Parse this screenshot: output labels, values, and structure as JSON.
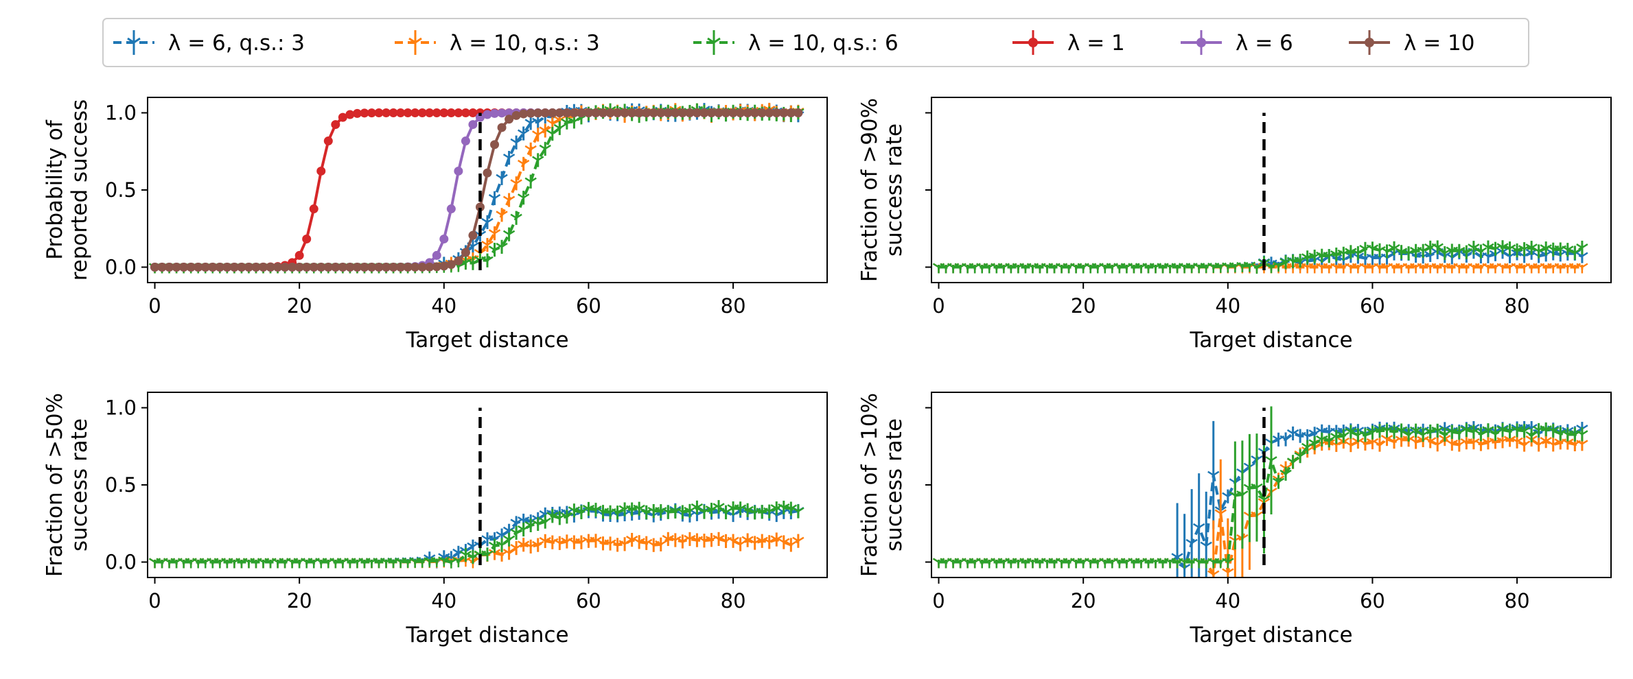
{
  "legend": {
    "entries": [
      {
        "label": "λ = 6, q.s.: 3",
        "color": "#1f77b4",
        "style": "dashed-tri"
      },
      {
        "label": "λ = 10, q.s.: 3",
        "color": "#ff7f0e",
        "style": "dashed-tri"
      },
      {
        "label": "λ = 10, q.s.: 6",
        "color": "#2ca02c",
        "style": "dashed-tri"
      },
      {
        "label": "λ = 1",
        "color": "#d62728",
        "style": "solid-dot"
      },
      {
        "label": "λ = 6",
        "color": "#9467bd",
        "style": "solid-dot"
      },
      {
        "label": "λ = 10",
        "color": "#8c564b",
        "style": "solid-dot"
      }
    ]
  },
  "chart_data": [
    {
      "type": "line",
      "id": "reported-success",
      "xlabel": "Target distance",
      "ylabel": [
        "Probability of",
        "reported success"
      ],
      "xlim": [
        -1,
        93
      ],
      "ylim": [
        -0.1,
        1.1
      ],
      "xticks": [
        0,
        20,
        40,
        60,
        80
      ],
      "yticks": [
        0.0,
        0.5,
        1.0
      ],
      "ytick_labels": [
        "0.0",
        "0.5",
        "1.0"
      ],
      "threshold_x": 45,
      "series": [
        {
          "name": "λ = 6, q.s.: 3",
          "color": "#1f77b4",
          "style": "dashed-tri",
          "logistic": {
            "mid": 47.5,
            "k": 0.55
          }
        },
        {
          "name": "λ = 10, q.s.: 3",
          "color": "#ff7f0e",
          "style": "dashed-tri",
          "logistic": {
            "mid": 49.5,
            "k": 0.5
          }
        },
        {
          "name": "λ = 10, q.s.: 6",
          "color": "#2ca02c",
          "style": "dashed-tri",
          "logistic": {
            "mid": 51.5,
            "k": 0.5
          }
        },
        {
          "name": "λ = 1",
          "color": "#d62728",
          "style": "solid-dot",
          "logistic": {
            "mid": 22.5,
            "k": 1.0
          }
        },
        {
          "name": "λ = 6",
          "color": "#9467bd",
          "style": "solid-dot",
          "logistic": {
            "mid": 41.5,
            "k": 1.0
          }
        },
        {
          "name": "λ = 10",
          "color": "#8c564b",
          "style": "solid-dot",
          "logistic": {
            "mid": 45.5,
            "k": 0.9
          }
        }
      ]
    },
    {
      "type": "line",
      "id": "fraction-90",
      "xlabel": "Target distance",
      "ylabel": [
        "Fraction of >90%",
        "success rate"
      ],
      "xlim": [
        -1,
        93
      ],
      "ylim": [
        -0.1,
        1.1
      ],
      "xticks": [
        0,
        20,
        40,
        60,
        80
      ],
      "yticks": [
        0.0,
        0.5,
        1.0
      ],
      "ytick_labels": [
        "",
        "",
        ""
      ],
      "threshold_x": 45,
      "series": [
        {
          "name": "λ = 6, q.s.: 3",
          "color": "#1f77b4",
          "style": "dashed-tri",
          "logistic": {
            "mid": 51,
            "k": 0.3,
            "max": 0.08
          }
        },
        {
          "name": "λ = 10, q.s.: 3",
          "color": "#ff7f0e",
          "style": "dashed-tri",
          "logistic": {
            "mid": 50,
            "k": 0.3,
            "max": 0.0
          }
        },
        {
          "name": "λ = 10, q.s.: 6",
          "color": "#2ca02c",
          "style": "dashed-tri",
          "logistic": {
            "mid": 51,
            "k": 0.3,
            "max": 0.11
          }
        }
      ]
    },
    {
      "type": "line",
      "id": "fraction-50",
      "xlabel": "Target distance",
      "ylabel": [
        "Fraction of >50%",
        "success rate"
      ],
      "xlim": [
        -1,
        93
      ],
      "ylim": [
        -0.1,
        1.1
      ],
      "xticks": [
        0,
        20,
        40,
        60,
        80
      ],
      "yticks": [
        0.0,
        0.5,
        1.0
      ],
      "ytick_labels": [
        "0.0",
        "0.5",
        "1.0"
      ],
      "threshold_x": 45,
      "series": [
        {
          "name": "λ = 6, q.s.: 3",
          "color": "#1f77b4",
          "style": "dashed-tri",
          "logistic": {
            "mid": 47,
            "k": 0.35,
            "max": 0.32
          }
        },
        {
          "name": "λ = 10, q.s.: 3",
          "color": "#ff7f0e",
          "style": "dashed-tri",
          "logistic": {
            "mid": 48.5,
            "k": 0.4,
            "max": 0.13
          }
        },
        {
          "name": "λ = 10, q.s.: 6",
          "color": "#2ca02c",
          "style": "dashed-tri",
          "logistic": {
            "mid": 50,
            "k": 0.35,
            "max": 0.34
          }
        }
      ]
    },
    {
      "type": "line",
      "id": "fraction-10",
      "xlabel": "Target distance",
      "ylabel": [
        "Fraction of >10%",
        "success rate"
      ],
      "xlim": [
        -1,
        93
      ],
      "ylim": [
        -0.1,
        1.1
      ],
      "xticks": [
        0,
        20,
        40,
        60,
        80
      ],
      "yticks": [
        0.0,
        0.5,
        1.0
      ],
      "ytick_labels": [
        "",
        "",
        ""
      ],
      "threshold_x": 45,
      "series": [
        {
          "name": "λ = 6, q.s.: 3",
          "color": "#1f77b4",
          "style": "dashed-tri",
          "logistic": {
            "mid": 40,
            "k": 0.35,
            "max": 0.85,
            "start": 33
          }
        },
        {
          "name": "λ = 10, q.s.: 3",
          "color": "#ff7f0e",
          "style": "dashed-tri",
          "logistic": {
            "mid": 45,
            "k": 0.4,
            "max": 0.78,
            "start": 38
          }
        },
        {
          "name": "λ = 10, q.s.: 6",
          "color": "#2ca02c",
          "style": "dashed-tri",
          "logistic": {
            "mid": 46,
            "k": 0.4,
            "max": 0.84,
            "start": 41
          }
        }
      ]
    }
  ]
}
